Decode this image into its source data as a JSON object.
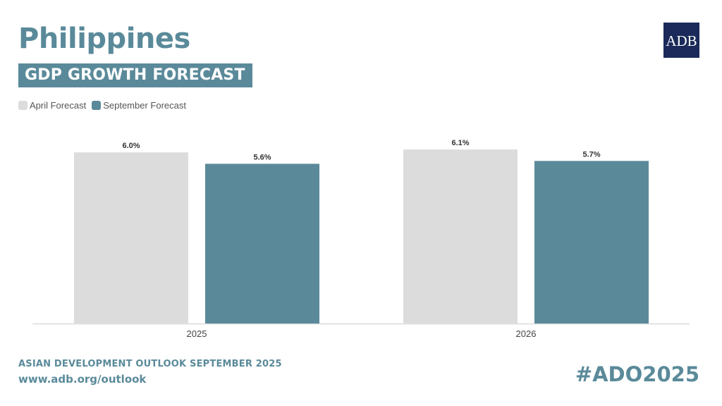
{
  "header": {
    "country": "Philippines",
    "subtitle": "GDP GROWTH FORECAST",
    "logo_text": "ADB"
  },
  "legend": [
    {
      "label": "April Forecast",
      "color": "#dcdcdc"
    },
    {
      "label": "September Forecast",
      "color": "#5a8a9a"
    }
  ],
  "chart_data": {
    "type": "bar",
    "categories": [
      "2025",
      "2026"
    ],
    "series": [
      {
        "name": "April Forecast",
        "values": [
          6.0,
          6.1
        ],
        "labels": [
          "6.0%",
          "6.1%"
        ],
        "color": "#dcdcdc"
      },
      {
        "name": "September Forecast",
        "values": [
          5.6,
          5.7
        ],
        "labels": [
          "5.6%",
          "5.7%"
        ],
        "color": "#5a8a9a"
      }
    ],
    "ylim": [
      0,
      6.4
    ],
    "grid": false,
    "legend_position": "top-left"
  },
  "footer": {
    "title": "ASIAN DEVELOPMENT OUTLOOK SEPTEMBER 2025",
    "url": "www.adb.org/outlook",
    "hashtag": "#ADO2025"
  }
}
